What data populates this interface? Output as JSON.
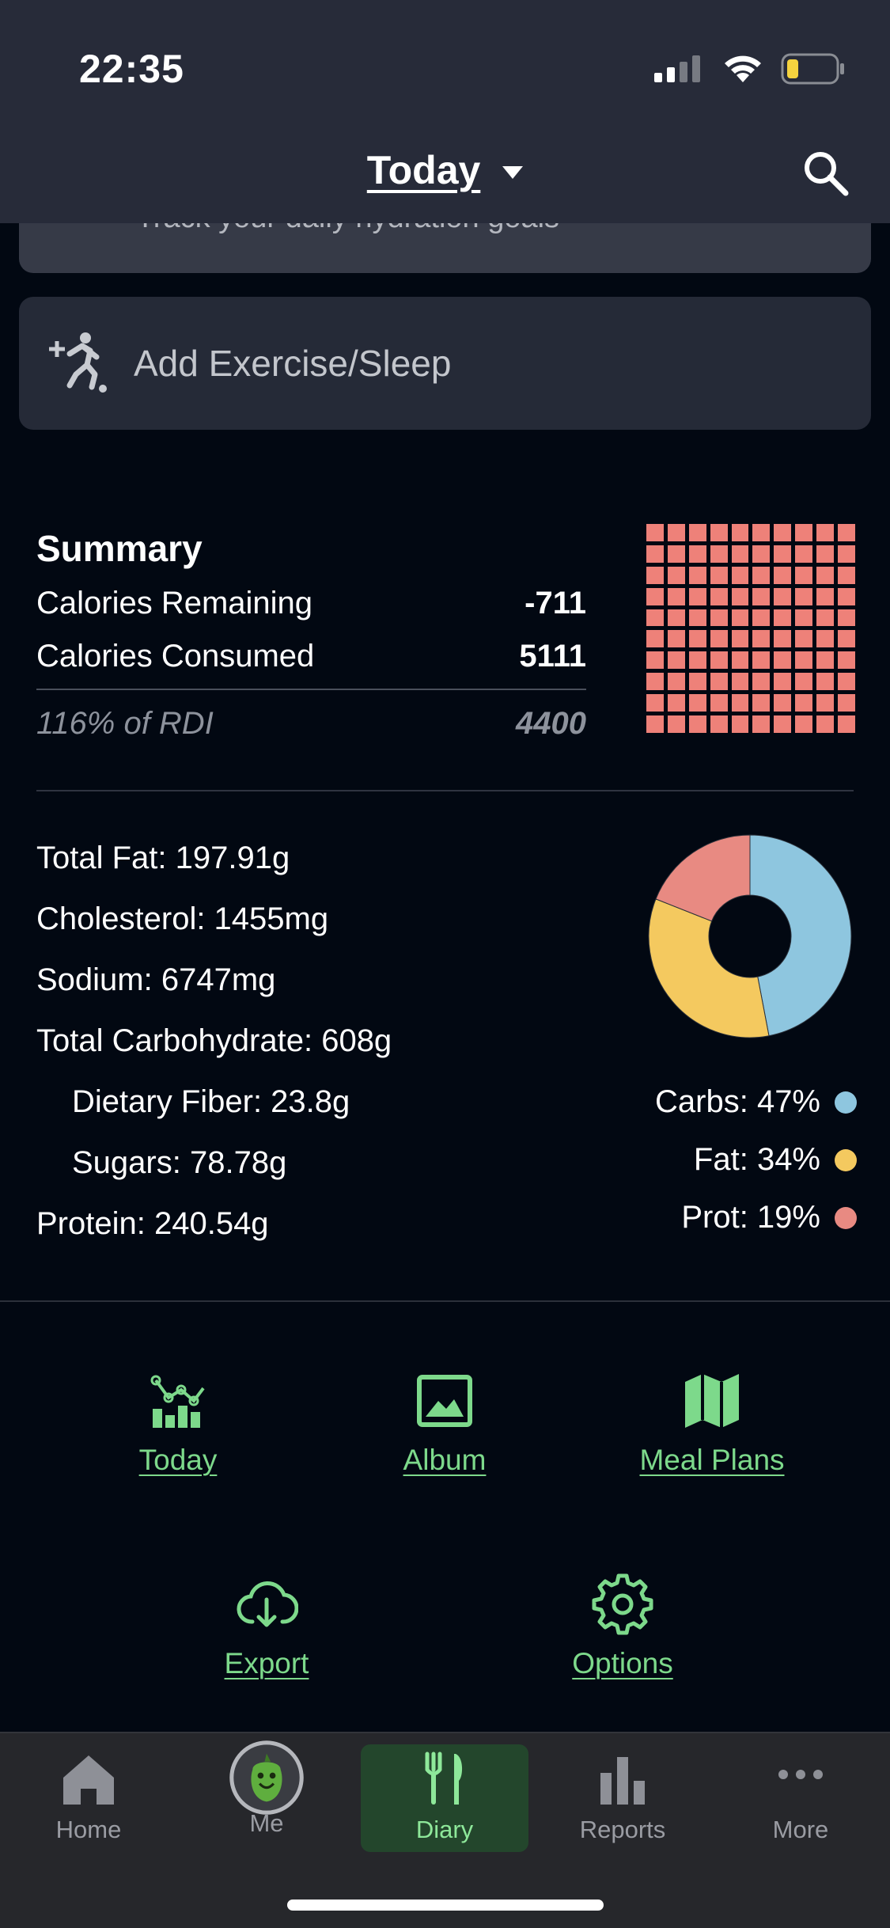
{
  "status_bar": {
    "time": "22:35"
  },
  "nav": {
    "title": "Today"
  },
  "hydration": {
    "text": "Track your daily hydration goals"
  },
  "exercise": {
    "label": "Add Exercise/Sleep"
  },
  "summary": {
    "title": "Summary",
    "calories_remaining_label": "Calories Remaining",
    "calories_remaining_value": "-711",
    "calories_consumed_label": "Calories Consumed",
    "calories_consumed_value": "5111",
    "rdi_label": "116% of RDI",
    "rdi_value": "4400",
    "waffle_filled_fraction": 1.0,
    "waffle_color": "#ee8179"
  },
  "nutrients": [
    {
      "text": "Total Fat: 197.91g"
    },
    {
      "text": "Cholesterol: 1455mg"
    },
    {
      "text": "Sodium: 6747mg"
    },
    {
      "text": "Total Carbohydrate: 608g"
    },
    {
      "text": "Dietary Fiber: 23.8g"
    },
    {
      "text": "Sugars: 78.78g"
    },
    {
      "text": "Protein: 240.54g"
    }
  ],
  "chart_data": {
    "type": "pie",
    "categories": [
      "Carbs",
      "Fat",
      "Prot"
    ],
    "values": [
      47,
      34,
      19
    ],
    "colors": [
      "#8ec6df",
      "#f4c95f",
      "#e88a82"
    ],
    "legend": [
      {
        "text": "Carbs: 47%",
        "color": "#8ec6df"
      },
      {
        "text": "Fat: 34%",
        "color": "#f4c95f"
      },
      {
        "text": "Prot: 19%",
        "color": "#e88a82"
      }
    ]
  },
  "actions": {
    "today": "Today",
    "album": "Album",
    "meal_plans": "Meal Plans",
    "export": "Export",
    "options": "Options"
  },
  "tabbar": {
    "home": "Home",
    "me": "Me",
    "diary": "Diary",
    "reports": "Reports",
    "more": "More"
  },
  "colors": {
    "accent": "#7dd98b",
    "background": "#020812",
    "header": "#272b39"
  }
}
